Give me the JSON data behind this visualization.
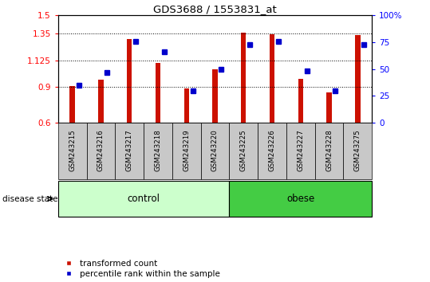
{
  "title": "GDS3688 / 1553831_at",
  "samples": [
    "GSM243215",
    "GSM243216",
    "GSM243217",
    "GSM243218",
    "GSM243219",
    "GSM243220",
    "GSM243225",
    "GSM243226",
    "GSM243227",
    "GSM243228",
    "GSM243275"
  ],
  "red_values": [
    0.905,
    0.96,
    1.3,
    1.1,
    0.885,
    1.05,
    1.355,
    1.345,
    0.965,
    0.855,
    1.335
  ],
  "blue_pct": [
    35,
    47,
    76,
    66,
    30,
    50,
    73,
    76,
    48,
    30,
    73
  ],
  "ylim_left": [
    0.6,
    1.5
  ],
  "ylim_right": [
    0,
    100
  ],
  "yticks_left": [
    0.6,
    0.9,
    1.125,
    1.35,
    1.5
  ],
  "ytick_labels_left": [
    "0.6",
    "0.9",
    "1.125",
    "1.35",
    "1.5"
  ],
  "yticks_right": [
    0,
    25,
    50,
    75,
    100
  ],
  "ytick_labels_right": [
    "0",
    "25",
    "50",
    "75",
    "100%"
  ],
  "hlines": [
    0.9,
    1.125,
    1.35
  ],
  "n_control": 6,
  "n_obese": 5,
  "control_label": "control",
  "obese_label": "obese",
  "disease_state_label": "disease state",
  "legend_red": "transformed count",
  "legend_blue": "percentile rank within the sample",
  "bar_color": "#cc1100",
  "dot_color": "#0000cc",
  "control_bg": "#ccffcc",
  "obese_bg": "#44cc44",
  "tick_bg": "#c8c8c8",
  "base_value": 0.6,
  "ymax": 1.5
}
